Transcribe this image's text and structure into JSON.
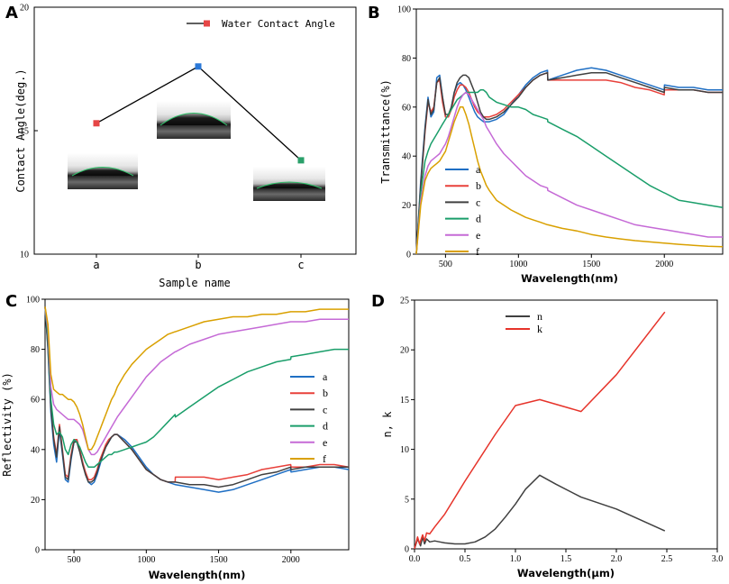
{
  "colors": {
    "a": "#1f6fc4",
    "b": "#e8403a",
    "c": "#404040",
    "d": "#1a9e6a",
    "e": "#c56ad6",
    "f": "#d9a000",
    "ptA_a": "#e64646",
    "ptA_b": "#2a78d8",
    "ptA_c": "#2aa06a",
    "n": "#404040",
    "k": "#e6332a"
  },
  "chart_data": [
    {
      "panel": "A",
      "type": "line",
      "categories": [
        "a",
        "b",
        "c"
      ],
      "series": [
        {
          "name": "Water Contact Angle",
          "values": [
            15.3,
            17.6,
            13.8
          ]
        }
      ],
      "xlabel": "Sample name",
      "ylabel": "Contact Angle(deg.)",
      "ylim": [
        10,
        20
      ],
      "yticks": [
        10,
        15,
        20
      ],
      "legend": "top-right",
      "insets": [
        "droplet-image-a",
        "droplet-image-b",
        "droplet-image-c"
      ]
    },
    {
      "panel": "B",
      "type": "line",
      "xlabel": "Wavelength(nm)",
      "ylabel": "Transmittance(%)",
      "xlim": [
        300,
        2400
      ],
      "ylim": [
        0,
        100
      ],
      "xticks": [
        500,
        1000,
        1500,
        2000
      ],
      "yticks": [
        0,
        20,
        40,
        60,
        80,
        100
      ],
      "legend": "middle-left",
      "x": [
        300,
        330,
        360,
        380,
        400,
        420,
        440,
        460,
        480,
        500,
        520,
        540,
        560,
        580,
        600,
        620,
        640,
        660,
        680,
        700,
        720,
        740,
        760,
        780,
        800,
        850,
        900,
        950,
        1000,
        1050,
        1100,
        1150,
        1199,
        1201,
        1300,
        1400,
        1500,
        1600,
        1700,
        1800,
        1900,
        1999,
        2001,
        2100,
        2200,
        2300,
        2400
      ],
      "series": [
        {
          "name": "a",
          "values": [
            0,
            30,
            52,
            64,
            56,
            58,
            72,
            73,
            64,
            56,
            56,
            60,
            66,
            69,
            70,
            69,
            67,
            64,
            61,
            58,
            56,
            55,
            54,
            54,
            54,
            55,
            57,
            61,
            65,
            69,
            72,
            74,
            75,
            71,
            73,
            75,
            76,
            75,
            73,
            71,
            69,
            67,
            69,
            68,
            68,
            67,
            67
          ]
        },
        {
          "name": "b",
          "values": [
            0,
            28,
            50,
            62,
            58,
            60,
            70,
            71,
            62,
            56,
            56,
            59,
            64,
            67,
            69,
            69,
            68,
            66,
            63,
            60,
            58,
            57,
            56,
            56,
            56,
            57,
            59,
            62,
            65,
            68,
            71,
            73,
            74,
            71,
            71,
            71,
            71,
            71,
            70,
            68,
            67,
            65,
            67,
            67,
            67,
            66,
            66
          ]
        },
        {
          "name": "c",
          "values": [
            0,
            28,
            51,
            63,
            57,
            59,
            70,
            72,
            64,
            57,
            57,
            60,
            66,
            70,
            72,
            73,
            73,
            72,
            69,
            66,
            62,
            58,
            56,
            55,
            55,
            56,
            58,
            61,
            64,
            68,
            71,
            73,
            74,
            71,
            72,
            73,
            74,
            74,
            72,
            70,
            68,
            66,
            68,
            67,
            67,
            66,
            66
          ]
        },
        {
          "name": "d",
          "values": [
            0,
            25,
            38,
            42,
            45,
            47,
            49,
            51,
            53,
            55,
            57,
            59,
            61,
            63,
            64,
            65,
            66,
            66,
            66,
            66,
            66,
            67,
            67,
            66,
            64,
            62,
            61,
            60,
            60,
            59,
            57,
            56,
            55,
            54,
            51,
            48,
            44,
            40,
            36,
            32,
            28,
            25,
            25,
            22,
            21,
            20,
            19
          ]
        },
        {
          "name": "e",
          "values": [
            0,
            22,
            32,
            36,
            38,
            39,
            40,
            41,
            43,
            45,
            48,
            52,
            56,
            60,
            63,
            65,
            66,
            65,
            63,
            61,
            59,
            57,
            55,
            52,
            50,
            45,
            41,
            38,
            35,
            32,
            30,
            28,
            27,
            26,
            23,
            20,
            18,
            16,
            14,
            12,
            11,
            10,
            10,
            9,
            8,
            7,
            7
          ]
        },
        {
          "name": "f",
          "values": [
            0,
            20,
            30,
            33,
            35,
            36,
            37,
            38,
            40,
            42,
            46,
            50,
            54,
            57,
            60,
            60,
            57,
            53,
            48,
            43,
            38,
            34,
            31,
            28,
            26,
            22,
            20,
            18,
            16.5,
            15,
            14,
            13,
            12,
            12,
            10.5,
            9.5,
            8,
            7,
            6.2,
            5.5,
            5,
            4.5,
            4.5,
            4,
            3.6,
            3.2,
            3
          ]
        }
      ]
    },
    {
      "panel": "C",
      "type": "line",
      "xlabel": "Wavelength(nm)",
      "ylabel": "Reflectivity (%)",
      "xlim": [
        300,
        2400
      ],
      "ylim": [
        0,
        100
      ],
      "xticks": [
        500,
        1000,
        1500,
        2000
      ],
      "yticks": [
        0,
        20,
        40,
        60,
        80,
        100
      ],
      "legend": "middle-right",
      "x": [
        300,
        320,
        340,
        360,
        380,
        400,
        420,
        440,
        460,
        480,
        500,
        520,
        540,
        560,
        580,
        600,
        620,
        640,
        660,
        680,
        700,
        720,
        740,
        760,
        780,
        800,
        850,
        900,
        950,
        1000,
        1050,
        1100,
        1150,
        1199,
        1201,
        1300,
        1400,
        1500,
        1600,
        1700,
        1800,
        1900,
        1999,
        2001,
        2100,
        2200,
        2300,
        2400
      ],
      "series": [
        {
          "name": "a",
          "values": [
            97,
            80,
            55,
            42,
            35,
            48,
            38,
            28,
            27,
            36,
            43,
            44,
            40,
            35,
            30,
            27,
            26,
            27,
            30,
            34,
            38,
            41,
            43,
            45,
            46,
            46,
            44,
            41,
            37,
            33,
            30,
            28,
            27,
            26,
            26,
            25,
            24,
            23,
            24,
            26,
            28,
            30,
            32,
            31,
            32,
            33,
            33,
            32
          ]
        },
        {
          "name": "b",
          "values": [
            97,
            82,
            58,
            45,
            38,
            50,
            40,
            30,
            29,
            38,
            44,
            44,
            40,
            35,
            31,
            28,
            28,
            29,
            32,
            36,
            39,
            42,
            44,
            45,
            46,
            46,
            43,
            40,
            36,
            32,
            30,
            28,
            27,
            27,
            29,
            29,
            29,
            28,
            29,
            30,
            32,
            33,
            34,
            33,
            33,
            34,
            34,
            33
          ]
        },
        {
          "name": "c",
          "values": [
            97,
            81,
            57,
            44,
            37,
            49,
            39,
            29,
            28,
            37,
            43,
            43,
            39,
            34,
            30,
            27,
            27,
            28,
            31,
            35,
            38,
            41,
            43,
            45,
            46,
            46,
            43,
            40,
            36,
            32,
            30,
            28,
            27,
            27,
            27,
            26,
            26,
            25,
            26,
            28,
            30,
            31,
            33,
            32,
            33,
            33,
            33,
            33
          ]
        },
        {
          "name": "d",
          "values": [
            97,
            85,
            60,
            50,
            46,
            47,
            45,
            40,
            38,
            42,
            44,
            43,
            41,
            38,
            35,
            33,
            33,
            33,
            34,
            35,
            36,
            37,
            38,
            38,
            39,
            39,
            40,
            41,
            42,
            43,
            45,
            48,
            51,
            54,
            53,
            57,
            61,
            65,
            68,
            71,
            73,
            75,
            76,
            77,
            78,
            79,
            80,
            80
          ]
        },
        {
          "name": "e",
          "values": [
            97,
            88,
            65,
            58,
            56,
            55,
            54,
            53,
            52,
            52,
            52,
            51,
            50,
            48,
            44,
            40,
            38,
            38,
            39,
            41,
            43,
            45,
            47,
            49,
            51,
            53,
            57,
            61,
            65,
            69,
            72,
            75,
            77,
            79,
            79,
            82,
            84,
            86,
            87,
            88,
            89,
            90,
            91,
            91,
            91,
            92,
            92,
            92
          ]
        },
        {
          "name": "f",
          "values": [
            97,
            90,
            70,
            64,
            63,
            62,
            62,
            61,
            60,
            60,
            59,
            57,
            54,
            50,
            45,
            40,
            40,
            42,
            45,
            48,
            51,
            54,
            57,
            60,
            62,
            65,
            70,
            74,
            77,
            80,
            82,
            84,
            86,
            87,
            87,
            89,
            91,
            92,
            93,
            93,
            94,
            94,
            95,
            95,
            95,
            96,
            96,
            96
          ]
        }
      ]
    },
    {
      "panel": "D",
      "type": "line",
      "xlabel": "Wavelength(μm)",
      "ylabel": "n, k",
      "xlim": [
        0,
        3.0
      ],
      "ylim": [
        0,
        25
      ],
      "xticks": [
        0.0,
        0.5,
        1.0,
        1.5,
        2.0,
        2.5,
        3.0
      ],
      "yticks": [
        0,
        5,
        10,
        15,
        20,
        25
      ],
      "legend": "top-center",
      "series": [
        {
          "name": "n",
          "x": [
            0,
            0.03,
            0.06,
            0.08,
            0.1,
            0.12,
            0.15,
            0.2,
            0.25,
            0.3,
            0.4,
            0.5,
            0.6,
            0.7,
            0.8,
            0.9,
            1.0,
            1.1,
            1.24,
            1.4,
            1.65,
            2.0,
            2.48
          ],
          "values": [
            0,
            1.0,
            0.3,
            1.2,
            0.5,
            1.0,
            0.7,
            0.8,
            0.7,
            0.6,
            0.5,
            0.5,
            0.7,
            1.2,
            2.0,
            3.2,
            4.5,
            6.0,
            7.4,
            6.5,
            5.2,
            4.0,
            1.8
          ]
        },
        {
          "name": "k",
          "x": [
            0,
            0.03,
            0.05,
            0.08,
            0.1,
            0.12,
            0.15,
            0.2,
            0.3,
            0.5,
            0.8,
            1.0,
            1.24,
            1.65,
            2.0,
            2.48
          ],
          "values": [
            0,
            1.2,
            0.5,
            1.4,
            0.8,
            1.6,
            1.5,
            2.2,
            3.5,
            6.8,
            11.5,
            14.4,
            15.0,
            13.8,
            17.5,
            23.8
          ]
        }
      ]
    }
  ],
  "panels": {
    "A": {
      "label": "A",
      "legend": "Water Contact Angle"
    },
    "B": {
      "label": "B"
    },
    "C": {
      "label": "C"
    },
    "D": {
      "label": "D"
    }
  }
}
